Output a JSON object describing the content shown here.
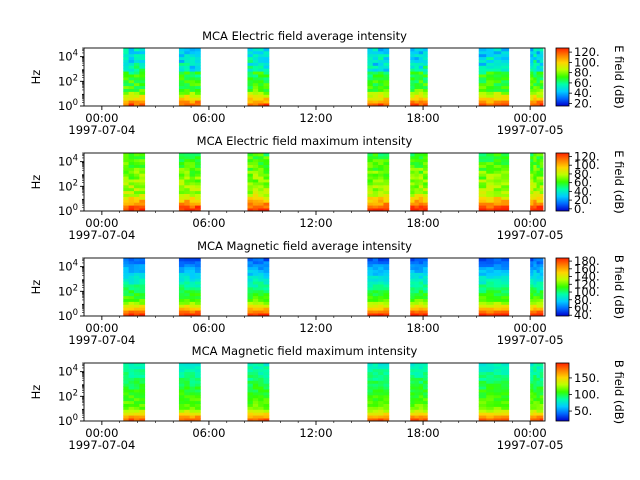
{
  "chart_data": [
    {
      "type": "heatmap",
      "title": "MCA  Electric field average intensity",
      "ylabel": "Hz",
      "colorbar": {
        "label": "E field (dB)",
        "ticks": [
          20,
          40,
          60,
          80,
          100,
          120
        ],
        "tick_labels": [
          "20.",
          "40.",
          "60.",
          "80.",
          "100.",
          "120."
        ],
        "range": [
          15,
          128
        ]
      },
      "x_ticks": [
        "00:00",
        "06:00",
        "12:00",
        "18:00",
        "00:00"
      ],
      "x_date_labels": [
        "1997-07-04",
        "1997-07-05"
      ],
      "y_ticks": [
        "10^0",
        "10^2",
        "10^4"
      ],
      "xlim": [
        "1997-07-03T23:00",
        "1997-07-05T00:50"
      ],
      "ylim_log10": [
        0,
        4.7
      ],
      "variant": "e_avg",
      "segments": [
        [
          0.05,
          0.1
        ],
        [
          0.18,
          0.23
        ],
        [
          0.34,
          0.39
        ],
        [
          0.62,
          0.67
        ],
        [
          0.72,
          0.76
        ],
        [
          0.88,
          0.95
        ],
        [
          1.0,
          1.03
        ],
        [
          1.28,
          1.34
        ],
        [
          1.4,
          1.45
        ],
        [
          1.57,
          1.61
        ],
        [
          1.72,
          1.79
        ],
        [
          1.92,
          1.98
        ],
        [
          2.01,
          2.05
        ]
      ],
      "colorscale": [
        "#0000cc",
        "#0066ff",
        "#00ccff",
        "#00ffaa",
        "#33ff00",
        "#bbff00",
        "#ffd400",
        "#ff7f00",
        "#ff2200"
      ]
    },
    {
      "type": "heatmap",
      "title": "MCA  Electric field maximum intensity",
      "ylabel": "Hz",
      "colorbar": {
        "label": "E field (dB)",
        "ticks": [
          0,
          20,
          40,
          60,
          80,
          100,
          120
        ],
        "tick_labels": [
          "0.",
          "20.",
          "40.",
          "60.",
          "80.",
          "100.",
          "120."
        ],
        "range": [
          -5,
          128
        ]
      },
      "x_ticks": [
        "00:00",
        "06:00",
        "12:00",
        "18:00",
        "00:00"
      ],
      "x_date_labels": [
        "1997-07-04",
        "1997-07-05"
      ],
      "y_ticks": [
        "10^0",
        "10^2",
        "10^4"
      ],
      "xlim": [
        "1997-07-03T23:00",
        "1997-07-05T00:50"
      ],
      "ylim_log10": [
        0,
        4.7
      ],
      "variant": "e_max",
      "segments": [
        [
          0.05,
          0.1
        ],
        [
          0.18,
          0.23
        ],
        [
          0.34,
          0.39
        ],
        [
          0.62,
          0.67
        ],
        [
          0.72,
          0.76
        ],
        [
          0.88,
          0.95
        ],
        [
          1.0,
          1.03
        ],
        [
          1.28,
          1.34
        ],
        [
          1.4,
          1.45
        ],
        [
          1.57,
          1.61
        ],
        [
          1.72,
          1.79
        ],
        [
          1.92,
          1.98
        ],
        [
          2.01,
          2.05
        ]
      ],
      "colorscale": [
        "#0000cc",
        "#0066ff",
        "#00ccff",
        "#00ffaa",
        "#33ff00",
        "#bbff00",
        "#ffd400",
        "#ff7f00",
        "#ff2200"
      ]
    },
    {
      "type": "heatmap",
      "title": "MCA  Magnetic field average intensity",
      "ylabel": "Hz",
      "colorbar": {
        "label": "B field (dB)",
        "ticks": [
          40,
          60,
          80,
          100,
          120,
          140,
          160,
          180
        ],
        "tick_labels": [
          "40.",
          "60.",
          "80.",
          "100.",
          "120.",
          "140.",
          "160.",
          "180."
        ],
        "range": [
          38,
          188
        ]
      },
      "x_ticks": [
        "00:00",
        "06:00",
        "12:00",
        "18:00",
        "00:00"
      ],
      "x_date_labels": [
        "1997-07-04",
        "1997-07-05"
      ],
      "y_ticks": [
        "10^0",
        "10^2",
        "10^4"
      ],
      "xlim": [
        "1997-07-03T23:00",
        "1997-07-05T00:50"
      ],
      "ylim_log10": [
        0,
        4.7
      ],
      "variant": "b_avg",
      "segments": [
        [
          0.05,
          0.1
        ],
        [
          0.18,
          0.23
        ],
        [
          0.34,
          0.39
        ],
        [
          0.62,
          0.67
        ],
        [
          0.72,
          0.76
        ],
        [
          0.88,
          0.95
        ],
        [
          1.0,
          1.03
        ],
        [
          1.28,
          1.34
        ],
        [
          1.4,
          1.45
        ],
        [
          1.57,
          1.61
        ],
        [
          1.72,
          1.79
        ],
        [
          1.92,
          1.98
        ],
        [
          2.01,
          2.05
        ]
      ],
      "colorscale": [
        "#0000cc",
        "#0066ff",
        "#00ccff",
        "#00ffaa",
        "#33ff00",
        "#bbff00",
        "#ffd400",
        "#ff7f00",
        "#ff2200"
      ]
    },
    {
      "type": "heatmap",
      "title": "MCA  Magnetic field maximum intensity",
      "ylabel": "Hz",
      "colorbar": {
        "label": "B field (dB)",
        "ticks": [
          50,
          100,
          150
        ],
        "tick_labels": [
          "50.",
          "100.",
          "150."
        ],
        "range": [
          20,
          195
        ]
      },
      "x_ticks": [
        "00:00",
        "06:00",
        "12:00",
        "18:00",
        "00:00"
      ],
      "x_date_labels": [
        "1997-07-04",
        "1997-07-05"
      ],
      "y_ticks": [
        "10^0",
        "10^2",
        "10^4"
      ],
      "xlim": [
        "1997-07-03T23:00",
        "1997-07-05T00:50"
      ],
      "ylim_log10": [
        0,
        4.7
      ],
      "variant": "b_max",
      "segments": [
        [
          0.05,
          0.1
        ],
        [
          0.18,
          0.23
        ],
        [
          0.34,
          0.39
        ],
        [
          0.62,
          0.67
        ],
        [
          0.72,
          0.76
        ],
        [
          0.88,
          0.95
        ],
        [
          1.0,
          1.03
        ],
        [
          1.28,
          1.34
        ],
        [
          1.4,
          1.45
        ],
        [
          1.57,
          1.61
        ],
        [
          1.72,
          1.79
        ],
        [
          1.92,
          1.98
        ],
        [
          2.01,
          2.05
        ]
      ],
      "colorscale": [
        "#0000cc",
        "#0066ff",
        "#00ccff",
        "#00ffaa",
        "#33ff00",
        "#bbff00",
        "#ffd400",
        "#ff7f00",
        "#ff2200"
      ]
    }
  ]
}
